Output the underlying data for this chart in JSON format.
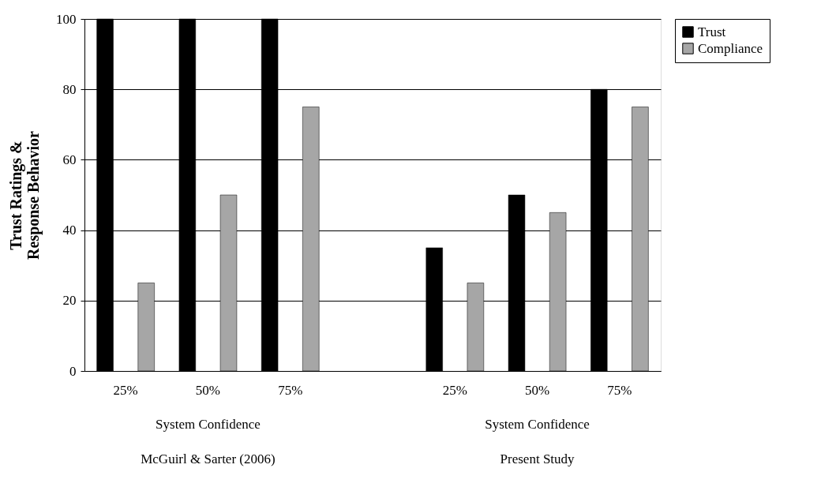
{
  "chart_data": {
    "type": "bar",
    "ylabel": "Trust Ratings & Response Behavior",
    "categories": [
      "25%",
      "50%",
      "75%",
      null,
      "25%",
      "50%",
      "75%"
    ],
    "series": [
      {
        "name": "Trust",
        "color": "#000000",
        "values": [
          100,
          100,
          100,
          null,
          35,
          50,
          80
        ]
      },
      {
        "name": "Compliance",
        "color": "#a6a6a6",
        "values": [
          25,
          50,
          75,
          null,
          25,
          45,
          75
        ]
      }
    ],
    "ylim": [
      0,
      100
    ],
    "yticks": [
      0,
      20,
      40,
      60,
      80,
      100
    ],
    "grid": "y",
    "legend": "right",
    "annotations": [
      "System Confidence",
      "System Confidence",
      "McGuirl & Sarter (2006)",
      "Present Study"
    ]
  }
}
